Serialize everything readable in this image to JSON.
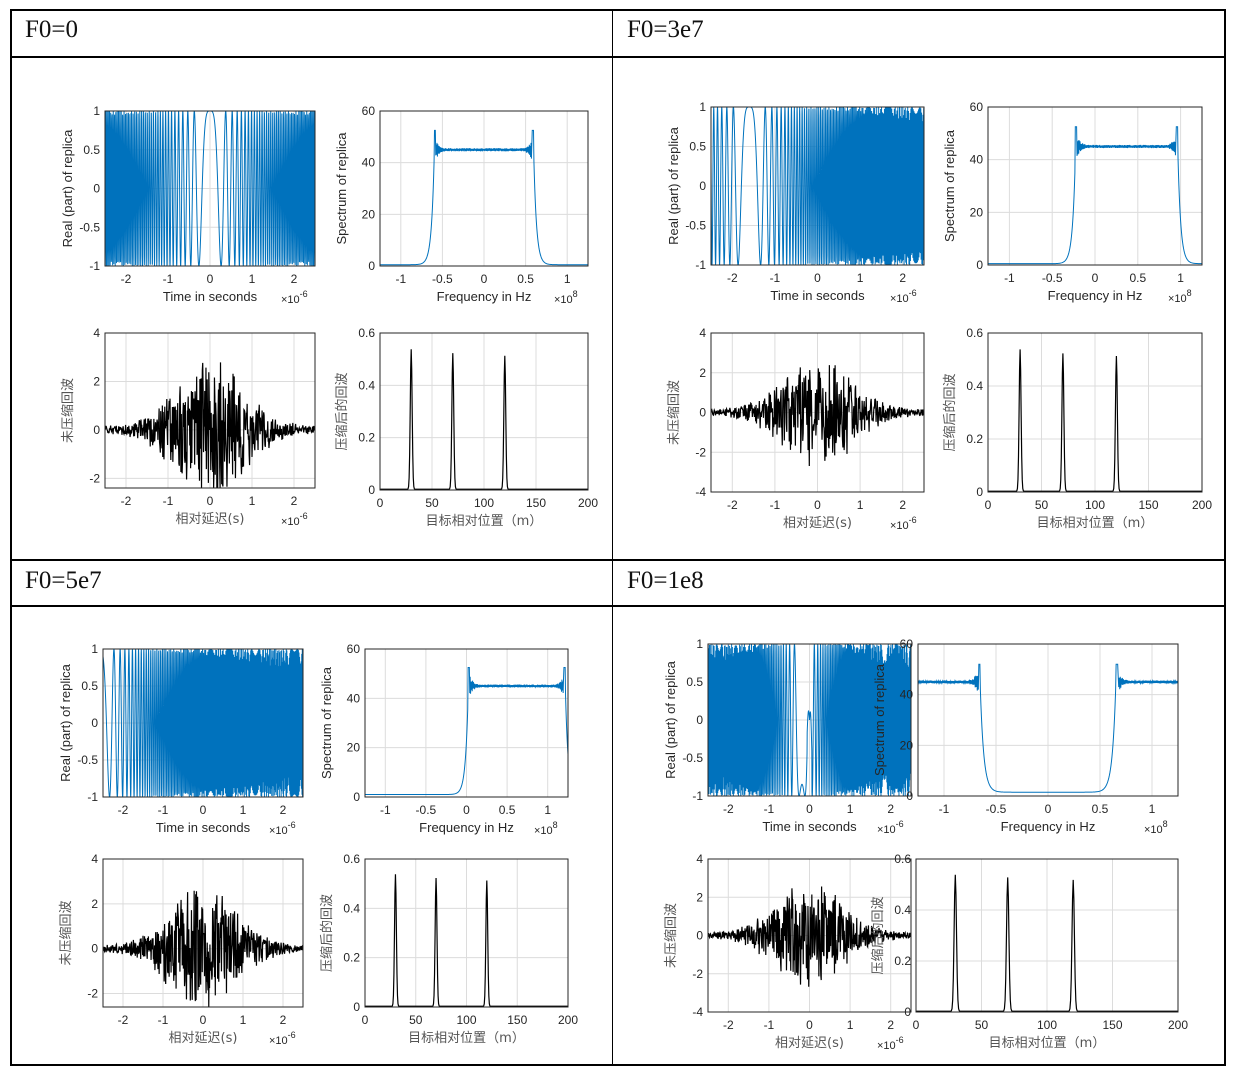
{
  "panels": [
    {
      "title": "F0=0",
      "f0": 0
    },
    {
      "title": "F0=3e7",
      "f0": 30000000
    },
    {
      "title": "F0=5e7",
      "f0": 50000000
    },
    {
      "title": "F0=1e8",
      "f0": 100000000
    }
  ],
  "chart_data": [
    {
      "panel": "F0=0",
      "type": "line",
      "title": "",
      "xlabel": "Time in seconds",
      "ylabel": "Real (part) of replica",
      "x_exponent": "×10^-6",
      "xlim": [
        -2.5,
        2.5
      ],
      "ylim": [
        -1,
        1
      ],
      "xticks": [
        -2,
        -1,
        0,
        1,
        2
      ],
      "yticks": [
        -1,
        -0.5,
        0,
        0.5,
        1
      ],
      "yticklabels": [
        "-1",
        "-0.5",
        "0",
        "0.5",
        "1"
      ],
      "grid": true,
      "color": "#0072BD",
      "signal": "chirp",
      "chirp_center": 0,
      "amplitude": 1
    },
    {
      "panel": "F0=0",
      "type": "line",
      "xlabel": "Frequency in Hz",
      "ylabel": "Spectrum of replica",
      "x_exponent": "×10^8",
      "xlim": [
        -1.25,
        1.25
      ],
      "ylim": [
        0,
        60
      ],
      "xticks": [
        -1,
        -0.5,
        0,
        0.5,
        1
      ],
      "yticks": [
        0,
        20,
        40,
        60
      ],
      "grid": true,
      "color": "#0072BD",
      "band": [
        -0.6,
        0.6
      ],
      "plateau": 45,
      "edge_peak": 52.5,
      "edge_dip": 39,
      "floor": 0.5,
      "wrap": false
    },
    {
      "panel": "F0=0",
      "type": "line",
      "xlabel": "相对延迟(s)",
      "ylabel": "未压缩回波",
      "x_exponent": "×10^-6",
      "xlim": [
        -2.5,
        2.5
      ],
      "ylim": [
        -2.4,
        4
      ],
      "xticks": [
        -2,
        -1,
        0,
        1,
        2
      ],
      "yticks": [
        -2,
        0,
        2,
        4
      ],
      "grid": true,
      "color": "#000000",
      "peak_amplitude": 2.8,
      "min_value": -2.4,
      "seed": 11,
      "carrier": "low"
    },
    {
      "panel": "F0=0",
      "type": "line",
      "xlabel": "目标相对位置（m）",
      "ylabel": "压缩后的回波",
      "xlim": [
        0,
        200
      ],
      "ylim": [
        0,
        0.6
      ],
      "xticks": [
        0,
        50,
        100,
        150,
        200
      ],
      "yticks": [
        0,
        0.2,
        0.4,
        0.6
      ],
      "grid": true,
      "color": "#000000",
      "peaks": [
        {
          "x": 30,
          "y": 0.535
        },
        {
          "x": 70,
          "y": 0.52
        },
        {
          "x": 120,
          "y": 0.51
        }
      ]
    },
    {
      "panel": "F0=3e7",
      "type": "line",
      "xlabel": "Time in seconds",
      "ylabel": "Real (part) of replica",
      "x_exponent": "×10^-6",
      "xlim": [
        -2.5,
        2.5
      ],
      "ylim": [
        -1,
        1
      ],
      "xticks": [
        -2,
        -1,
        0,
        1,
        2
      ],
      "yticks": [
        -1,
        -0.5,
        0,
        0.5,
        1
      ],
      "grid": true,
      "color": "#0072BD",
      "signal": "chirp",
      "chirp_center": -1.6,
      "amplitude": 1
    },
    {
      "panel": "F0=3e7",
      "type": "line",
      "xlabel": "Frequency in Hz",
      "ylabel": "Spectrum of replica",
      "x_exponent": "×10^8",
      "xlim": [
        -1.25,
        1.25
      ],
      "ylim": [
        0,
        60
      ],
      "xticks": [
        -1,
        -0.5,
        0,
        0.5,
        1
      ],
      "yticks": [
        0,
        20,
        40,
        60
      ],
      "grid": true,
      "color": "#0072BD",
      "band": [
        -0.23,
        0.97
      ],
      "plateau": 45,
      "edge_peak": 52.5,
      "edge_dip": 39,
      "floor": 0.5,
      "wrap": false
    },
    {
      "panel": "F0=3e7",
      "type": "line",
      "xlabel": "相对延迟(s)",
      "ylabel": "未压缩回波",
      "x_exponent": "×10^-6",
      "xlim": [
        -2.5,
        2.5
      ],
      "ylim": [
        -4,
        4
      ],
      "xticks": [
        -2,
        -1,
        0,
        1,
        2
      ],
      "yticks": [
        -4,
        -2,
        0,
        2,
        4
      ],
      "grid": true,
      "color": "#000000",
      "peak_amplitude": 2.8,
      "min_value": -2.7,
      "seed": 23,
      "carrier": "mid"
    },
    {
      "panel": "F0=3e7",
      "type": "line",
      "xlabel": "目标相对位置（m）",
      "ylabel": "压缩后的回波",
      "xlim": [
        0,
        200
      ],
      "ylim": [
        0,
        0.6
      ],
      "xticks": [
        0,
        50,
        100,
        150,
        200
      ],
      "yticks": [
        0,
        0.2,
        0.4,
        0.6
      ],
      "grid": true,
      "color": "#000000",
      "peaks": [
        {
          "x": 30,
          "y": 0.535
        },
        {
          "x": 70,
          "y": 0.52
        },
        {
          "x": 120,
          "y": 0.51
        }
      ]
    },
    {
      "panel": "F0=5e7",
      "type": "line",
      "xlabel": "Time in seconds",
      "ylabel": "Real (part) of replica",
      "x_exponent": "×10^-6",
      "xlim": [
        -2.5,
        2.5
      ],
      "ylim": [
        -1,
        1
      ],
      "xticks": [
        -2,
        -1,
        0,
        1,
        2
      ],
      "yticks": [
        -1,
        -0.5,
        0,
        0.5,
        1
      ],
      "grid": true,
      "color": "#0072BD",
      "signal": "chirp",
      "chirp_center": -2.6,
      "amplitude": 1
    },
    {
      "panel": "F0=5e7",
      "type": "line",
      "xlabel": "Frequency in Hz",
      "ylabel": "Spectrum of replica",
      "x_exponent": "×10^8",
      "xlim": [
        -1.25,
        1.25
      ],
      "ylim": [
        0,
        60
      ],
      "xticks": [
        -1,
        -0.5,
        0,
        0.5,
        1
      ],
      "yticks": [
        0,
        20,
        40,
        60
      ],
      "grid": true,
      "color": "#0072BD",
      "band": [
        0.02,
        1.22
      ],
      "plateau": 45,
      "edge_peak": 52.5,
      "edge_dip": 39,
      "floor": 1,
      "wrap": false
    },
    {
      "panel": "F0=5e7",
      "type": "line",
      "xlabel": "相对延迟(s)",
      "ylabel": "未压缩回波",
      "x_exponent": "×10^-6",
      "xlim": [
        -2.5,
        2.5
      ],
      "ylim": [
        -2.6,
        4
      ],
      "xticks": [
        -2,
        -1,
        0,
        1,
        2
      ],
      "yticks": [
        -2,
        0,
        2,
        4
      ],
      "grid": true,
      "color": "#000000",
      "peak_amplitude": 2.8,
      "min_value": -2.6,
      "seed": 37,
      "carrier": "high"
    },
    {
      "panel": "F0=5e7",
      "type": "line",
      "xlabel": "目标相对位置（m）",
      "ylabel": "压缩后的回波",
      "xlim": [
        0,
        200
      ],
      "ylim": [
        0,
        0.6
      ],
      "xticks": [
        0,
        50,
        100,
        150,
        200
      ],
      "yticks": [
        0,
        0.2,
        0.4,
        0.6
      ],
      "grid": true,
      "color": "#000000",
      "peaks": [
        {
          "x": 30,
          "y": 0.535
        },
        {
          "x": 70,
          "y": 0.52
        },
        {
          "x": 120,
          "y": 0.51
        }
      ]
    },
    {
      "panel": "F0=1e8",
      "type": "line",
      "xlabel": "Time in seconds",
      "ylabel": "Real (part) of replica",
      "x_exponent": "×10^-6",
      "xlim": [
        -2.5,
        2.5
      ],
      "ylim": [
        -1,
        1
      ],
      "xticks": [
        -2,
        -1,
        0,
        1,
        2
      ],
      "yticks": [
        -1,
        -0.5,
        0,
        0.5,
        1
      ],
      "grid": true,
      "color": "#0072BD",
      "signal": "chirp",
      "chirp_center": 0,
      "amplitude": 1,
      "aliased": true
    },
    {
      "panel": "F0=1e8",
      "type": "line",
      "xlabel": "Frequency in Hz",
      "ylabel": "Spectrum of replica",
      "x_exponent": "×10^8",
      "xlim": [
        -1.25,
        1.25
      ],
      "ylim": [
        0,
        60
      ],
      "xticks": [
        -1,
        -0.5,
        0,
        0.5,
        1
      ],
      "yticks": [
        0,
        20,
        40,
        60
      ],
      "grid": true,
      "color": "#0072BD",
      "band": [
        -0.65,
        0.65
      ],
      "plateau": 45,
      "edge_peak": 52,
      "edge_dip": 40,
      "floor": 1.5,
      "wrap": true
    },
    {
      "panel": "F0=1e8",
      "type": "line",
      "xlabel": "相对延迟(s)",
      "ylabel": "未压缩回波",
      "x_exponent": "×10^-6",
      "xlim": [
        -2.5,
        2.5
      ],
      "ylim": [
        -4,
        4
      ],
      "xticks": [
        -2,
        -1,
        0,
        1,
        2
      ],
      "yticks": [
        -4,
        -2,
        0,
        2,
        4
      ],
      "grid": true,
      "color": "#000000",
      "peak_amplitude": 2.8,
      "min_value": -2.7,
      "seed": 53,
      "carrier": "high"
    },
    {
      "panel": "F0=1e8",
      "type": "line",
      "xlabel": "目标相对位置（m）",
      "ylabel": "压缩后的回波",
      "xlim": [
        0,
        200
      ],
      "ylim": [
        0,
        0.6
      ],
      "xticks": [
        0,
        50,
        100,
        150,
        200
      ],
      "yticks": [
        0,
        0.2,
        0.4,
        0.6
      ],
      "grid": true,
      "color": "#000000",
      "peaks": [
        {
          "x": 30,
          "y": 0.535
        },
        {
          "x": 70,
          "y": 0.525
        },
        {
          "x": 120,
          "y": 0.515
        }
      ]
    }
  ]
}
